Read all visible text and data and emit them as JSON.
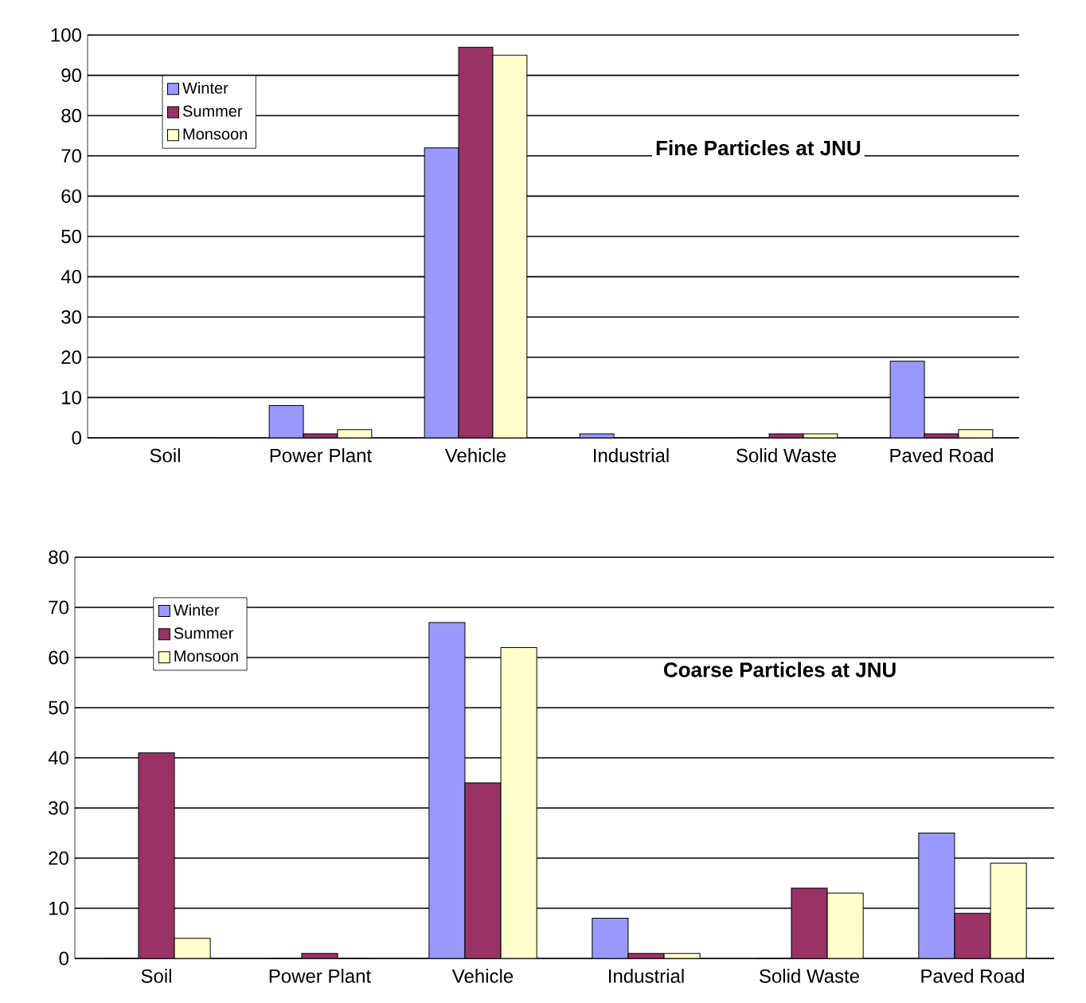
{
  "chart_data": [
    {
      "type": "bar",
      "title": "Fine Particles at JNU",
      "categories": [
        "Soil",
        "Power Plant",
        "Vehicle",
        "Industrial",
        "Solid Waste",
        "Paved Road"
      ],
      "series": [
        {
          "name": "Winter",
          "color": "#9999ff",
          "values": [
            0,
            8,
            72,
            1,
            0,
            19
          ]
        },
        {
          "name": "Summer",
          "color": "#993366",
          "values": [
            0,
            1,
            97,
            0,
            1,
            1
          ]
        },
        {
          "name": "Monsoon",
          "color": "#ffffcc",
          "values": [
            0,
            2,
            95,
            0,
            1,
            2
          ]
        }
      ],
      "ylim": [
        0,
        100
      ],
      "yticks": [
        0,
        10,
        20,
        30,
        40,
        50,
        60,
        70,
        80,
        90,
        100
      ],
      "grid": "y",
      "legend": "top left"
    },
    {
      "type": "bar",
      "title": "Coarse Particles at JNU",
      "categories": [
        "Soil",
        "Power Plant",
        "Vehicle",
        "Industrial",
        "Solid Waste",
        "Paved Road"
      ],
      "series": [
        {
          "name": "Winter",
          "color": "#9999ff",
          "values": [
            0,
            0,
            67,
            8,
            0,
            25
          ]
        },
        {
          "name": "Summer",
          "color": "#993366",
          "values": [
            41,
            1,
            35,
            1,
            14,
            9
          ]
        },
        {
          "name": "Monsoon",
          "color": "#ffffcc",
          "values": [
            4,
            0,
            62,
            1,
            13,
            19
          ]
        }
      ],
      "ylim": [
        0,
        80
      ],
      "yticks": [
        0,
        10,
        20,
        30,
        40,
        50,
        60,
        70,
        80
      ],
      "grid": "y",
      "legend": "top left"
    }
  ]
}
